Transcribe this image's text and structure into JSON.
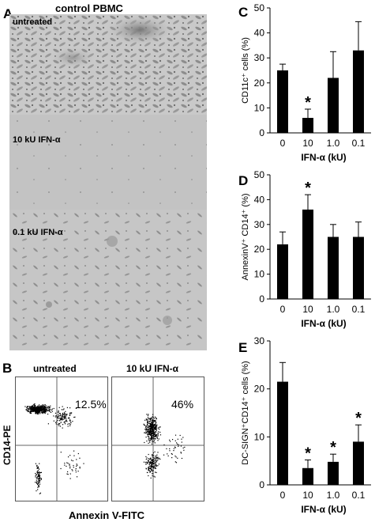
{
  "panels": {
    "a": "A",
    "b": "B",
    "c": "C",
    "d": "D",
    "e": "E"
  },
  "micrographs": {
    "title": "control PBMC",
    "labels": [
      "untreated",
      "10 kU IFN-α",
      "0.1 kU IFN-α"
    ]
  },
  "flow": {
    "plots": [
      {
        "label": "untreated",
        "percent": "12.5%"
      },
      {
        "label": "10 kU IFN-α",
        "percent": "46%"
      }
    ],
    "ylabel": "CD14-PE",
    "xlabel": "Annexin V-FITC"
  },
  "chart_data": [
    {
      "type": "bar",
      "panel": "C",
      "categories": [
        "0",
        "10",
        "1.0",
        "0.1"
      ],
      "values": [
        25,
        6,
        22,
        33
      ],
      "errors": [
        2.5,
        3.5,
        10.5,
        11.5
      ],
      "significance": [
        "",
        "*",
        "",
        ""
      ],
      "ylim": [
        0,
        50
      ],
      "yticks": [
        "0",
        "10",
        "20",
        "30",
        "40",
        "50"
      ],
      "xlabel": "IFN-α (kU)",
      "ylabel": "CD11c⁺ cells (%)",
      "bar_color": "#000000"
    },
    {
      "type": "bar",
      "panel": "D",
      "categories": [
        "0",
        "10",
        "1.0",
        "0.1"
      ],
      "values": [
        22,
        36,
        25,
        25
      ],
      "errors": [
        5,
        6,
        5,
        6
      ],
      "significance": [
        "",
        "*",
        "",
        ""
      ],
      "ylim": [
        0,
        50
      ],
      "yticks": [
        "0",
        "10",
        "20",
        "30",
        "40",
        "50"
      ],
      "xlabel": "IFN-α (kU)",
      "ylabel": "AnnexinV⁺ CD14⁺ (%)",
      "bar_color": "#000000"
    },
    {
      "type": "bar",
      "panel": "E",
      "categories": [
        "0",
        "10",
        "1.0",
        "0.1"
      ],
      "values": [
        21.5,
        3.5,
        4.8,
        9
      ],
      "errors": [
        4,
        1.7,
        1.6,
        3.5
      ],
      "significance": [
        "",
        "*",
        "*",
        "*"
      ],
      "ylim": [
        0,
        30
      ],
      "yticks": [
        "0",
        "10",
        "20",
        "30"
      ],
      "xlabel": "IFN-α (kU)",
      "ylabel": "DC-SIGN⁺CD14⁺ cells (%)",
      "bar_color": "#000000"
    }
  ]
}
